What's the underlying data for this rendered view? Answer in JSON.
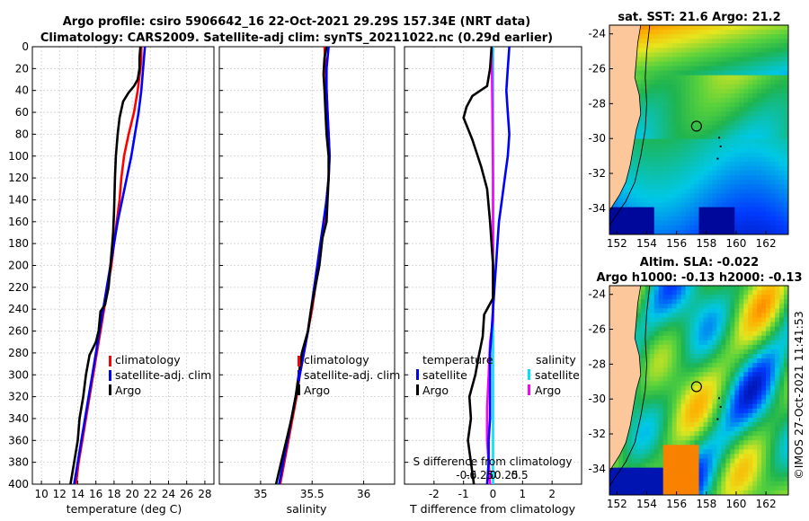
{
  "header": {
    "title_line1": "Argo profile: csiro 5906642_16 22-Oct-2021 29.29S 157.34E (NRT data)",
    "title_line2": "Climatology: CARS2009. Satellite-adj clim: synTS_20211022.nc (0.29d earlier)"
  },
  "colors": {
    "climatology": "#ff0000",
    "satellite": "#0000ff",
    "argo": "#000000",
    "sal_satellite": "#00e0ff",
    "sal_argo": "#ff00ff",
    "land": "#fcc89b"
  },
  "depth_axis": {
    "ticks": [
      0,
      20,
      40,
      60,
      80,
      100,
      120,
      140,
      160,
      180,
      200,
      220,
      240,
      260,
      280,
      300,
      320,
      340,
      360,
      380,
      400
    ],
    "ylim": [
      0,
      400
    ]
  },
  "chart_data": [
    {
      "type": "line",
      "name": "temperature",
      "xlabel": "temperature (deg C)",
      "xlim": [
        9,
        29
      ],
      "xticks": [
        10,
        12,
        14,
        16,
        18,
        20,
        22,
        24,
        26,
        28
      ],
      "ylim": [
        400,
        0
      ],
      "legend": [
        "climatology",
        "satellite-adj. clim",
        "Argo"
      ],
      "series": [
        {
          "name": "climatology",
          "color": "#ff0000",
          "points": [
            [
              21.0,
              0
            ],
            [
              21.0,
              10
            ],
            [
              20.9,
              20
            ],
            [
              20.6,
              40
            ],
            [
              20.2,
              60
            ],
            [
              19.6,
              80
            ],
            [
              19.1,
              100
            ],
            [
              18.8,
              120
            ],
            [
              18.6,
              140
            ],
            [
              18.3,
              160
            ],
            [
              18.0,
              180
            ],
            [
              17.7,
              200
            ],
            [
              17.3,
              220
            ],
            [
              16.9,
              240
            ],
            [
              16.5,
              260
            ],
            [
              16.1,
              280
            ],
            [
              15.7,
              300
            ],
            [
              15.3,
              320
            ],
            [
              14.9,
              340
            ],
            [
              14.5,
              360
            ],
            [
              14.1,
              380
            ],
            [
              13.8,
              400
            ]
          ]
        },
        {
          "name": "satellite-adj. clim",
          "color": "#0000ff",
          "points": [
            [
              21.4,
              0
            ],
            [
              21.3,
              10
            ],
            [
              21.2,
              20
            ],
            [
              21.0,
              40
            ],
            [
              20.7,
              60
            ],
            [
              20.3,
              80
            ],
            [
              19.9,
              100
            ],
            [
              19.4,
              120
            ],
            [
              18.9,
              140
            ],
            [
              18.4,
              160
            ],
            [
              18.0,
              180
            ],
            [
              17.6,
              200
            ],
            [
              17.2,
              220
            ],
            [
              16.8,
              240
            ],
            [
              16.4,
              260
            ],
            [
              16.0,
              280
            ],
            [
              15.6,
              300
            ],
            [
              15.2,
              320
            ],
            [
              14.8,
              340
            ],
            [
              14.4,
              360
            ],
            [
              14.0,
              380
            ],
            [
              13.6,
              400
            ]
          ]
        },
        {
          "name": "Argo",
          "color": "#000000",
          "points": [
            [
              20.9,
              0
            ],
            [
              20.8,
              10
            ],
            [
              20.8,
              20
            ],
            [
              20.6,
              30
            ],
            [
              20.2,
              36
            ],
            [
              19.6,
              42
            ],
            [
              19.0,
              50
            ],
            [
              18.6,
              65
            ],
            [
              18.4,
              80
            ],
            [
              18.2,
              100
            ],
            [
              18.1,
              120
            ],
            [
              18.0,
              150
            ],
            [
              17.9,
              170
            ],
            [
              17.6,
              200
            ],
            [
              17.4,
              220
            ],
            [
              17.0,
              236
            ],
            [
              16.5,
              242
            ],
            [
              16.3,
              260
            ],
            [
              16.0,
              270
            ],
            [
              15.3,
              282
            ],
            [
              14.9,
              300
            ],
            [
              14.6,
              320
            ],
            [
              14.2,
              340
            ],
            [
              14.0,
              360
            ],
            [
              13.6,
              380
            ],
            [
              13.2,
              400
            ]
          ]
        }
      ]
    },
    {
      "type": "line",
      "name": "salinity",
      "xlabel": "salinity",
      "xlim": [
        34.6,
        36.3
      ],
      "xticks": [
        35,
        35.5,
        36
      ],
      "ylim": [
        400,
        0
      ],
      "legend": [
        "climatology",
        "satellite-adj. clim",
        "Argo"
      ],
      "series": [
        {
          "name": "climatology",
          "color": "#ff0000",
          "points": [
            [
              35.62,
              0
            ],
            [
              35.63,
              20
            ],
            [
              35.64,
              40
            ],
            [
              35.65,
              60
            ],
            [
              35.66,
              80
            ],
            [
              35.67,
              100
            ],
            [
              35.66,
              120
            ],
            [
              35.64,
              140
            ],
            [
              35.62,
              160
            ],
            [
              35.59,
              180
            ],
            [
              35.56,
              200
            ],
            [
              35.53,
              220
            ],
            [
              35.5,
              240
            ],
            [
              35.46,
              260
            ],
            [
              35.42,
              280
            ],
            [
              35.38,
              300
            ],
            [
              35.35,
              320
            ],
            [
              35.31,
              340
            ],
            [
              35.27,
              360
            ],
            [
              35.23,
              380
            ],
            [
              35.19,
              400
            ]
          ]
        },
        {
          "name": "satellite-adj. clim",
          "color": "#0000ff",
          "points": [
            [
              35.66,
              0
            ],
            [
              35.64,
              20
            ],
            [
              35.64,
              40
            ],
            [
              35.65,
              60
            ],
            [
              35.66,
              80
            ],
            [
              35.67,
              100
            ],
            [
              35.66,
              120
            ],
            [
              35.64,
              140
            ],
            [
              35.61,
              160
            ],
            [
              35.58,
              180
            ],
            [
              35.55,
              200
            ],
            [
              35.52,
              220
            ],
            [
              35.49,
              240
            ],
            [
              35.46,
              260
            ],
            [
              35.42,
              280
            ],
            [
              35.38,
              300
            ],
            [
              35.34,
              320
            ],
            [
              35.3,
              340
            ],
            [
              35.26,
              360
            ],
            [
              35.22,
              380
            ],
            [
              35.18,
              400
            ]
          ]
        },
        {
          "name": "Argo",
          "color": "#000000",
          "points": [
            [
              35.64,
              0
            ],
            [
              35.62,
              10
            ],
            [
              35.61,
              25
            ],
            [
              35.62,
              40
            ],
            [
              35.63,
              60
            ],
            [
              35.64,
              80
            ],
            [
              35.66,
              100
            ],
            [
              35.66,
              120
            ],
            [
              35.65,
              140
            ],
            [
              35.64,
              160
            ],
            [
              35.6,
              175
            ],
            [
              35.57,
              200
            ],
            [
              35.53,
              220
            ],
            [
              35.49,
              240
            ],
            [
              35.46,
              260
            ],
            [
              35.4,
              280
            ],
            [
              35.37,
              300
            ],
            [
              35.34,
              320
            ],
            [
              35.3,
              340
            ],
            [
              35.25,
              360
            ],
            [
              35.2,
              380
            ],
            [
              35.15,
              400
            ]
          ]
        }
      ]
    },
    {
      "type": "line",
      "name": "difference",
      "xlabel": "T difference from climatology",
      "xlim": [
        -3,
        3
      ],
      "xticks": [
        -2,
        -1,
        0,
        1,
        2
      ],
      "top_xlabel": "S difference from climatology",
      "top_xticks": [
        "-0.5",
        "-0.25",
        "0",
        "0.25",
        "0.5"
      ],
      "ylim": [
        400,
        0
      ],
      "legend_temperature_title": "temperature",
      "legend_salinity_title": "salinity",
      "legend": [
        "satellite",
        "Argo",
        "satellite",
        "Argo"
      ],
      "series": [
        {
          "name": "T satellite",
          "color": "#0000ff",
          "points": [
            [
              0.55,
              0
            ],
            [
              0.5,
              20
            ],
            [
              0.45,
              40
            ],
            [
              0.5,
              60
            ],
            [
              0.55,
              80
            ],
            [
              0.5,
              100
            ],
            [
              0.4,
              120
            ],
            [
              0.3,
              140
            ],
            [
              0.2,
              160
            ],
            [
              0.15,
              180
            ],
            [
              0.1,
              200
            ],
            [
              0.05,
              220
            ],
            [
              0.0,
              240
            ],
            [
              -0.05,
              260
            ],
            [
              -0.1,
              280
            ],
            [
              -0.1,
              300
            ],
            [
              -0.1,
              320
            ],
            [
              -0.1,
              340
            ],
            [
              -0.15,
              360
            ],
            [
              -0.15,
              380
            ],
            [
              -0.2,
              400
            ]
          ]
        },
        {
          "name": "T Argo",
          "color": "#000000",
          "points": [
            [
              -0.05,
              0
            ],
            [
              -0.1,
              20
            ],
            [
              -0.2,
              36
            ],
            [
              -0.7,
              45
            ],
            [
              -0.9,
              55
            ],
            [
              -1.0,
              65
            ],
            [
              -0.7,
              85
            ],
            [
              -0.4,
              110
            ],
            [
              -0.2,
              130
            ],
            [
              -0.1,
              160
            ],
            [
              0.0,
              200
            ],
            [
              0.0,
              230
            ],
            [
              -0.3,
              245
            ],
            [
              -0.35,
              265
            ],
            [
              -0.5,
              285
            ],
            [
              -0.6,
              300
            ],
            [
              -0.8,
              320
            ],
            [
              -0.75,
              340
            ],
            [
              -0.85,
              360
            ],
            [
              -0.75,
              380
            ],
            [
              -0.65,
              400
            ]
          ]
        },
        {
          "name": "S satellite",
          "color": "#00e0ff",
          "points": [
            [
              0.0,
              0
            ],
            [
              0.0,
              100
            ],
            [
              0.0,
              200
            ],
            [
              0.0,
              300
            ],
            [
              0.0,
              400
            ]
          ]
        },
        {
          "name": "S Argo",
          "color": "#ff00ff",
          "points": [
            [
              -0.05,
              0
            ],
            [
              -0.02,
              60
            ],
            [
              0.0,
              120
            ],
            [
              0.0,
              200
            ],
            [
              0.0,
              250
            ],
            [
              -0.1,
              270
            ],
            [
              -0.15,
              300
            ],
            [
              -0.2,
              330
            ],
            [
              -0.2,
              360
            ],
            [
              -0.15,
              380
            ],
            [
              -0.1,
              400
            ]
          ]
        }
      ]
    },
    {
      "type": "heatmap",
      "name": "sst_map",
      "title": "sat. SST: 21.6  Argo: 21.2",
      "xticks": [
        152,
        154,
        156,
        158,
        160,
        162
      ],
      "yticks": [
        -24,
        -26,
        -28,
        -30,
        -32,
        -34
      ],
      "xlim": [
        151.5,
        163.5
      ],
      "ylim": [
        -35.5,
        -23.5
      ],
      "argo_position": [
        157.34,
        -29.29
      ]
    },
    {
      "type": "heatmap",
      "name": "sla_map",
      "title_line1": "Altim. SLA: -0.022",
      "title_line2": "Argo h1000: -0.13  h2000: -0.13",
      "xticks": [
        152,
        154,
        156,
        158,
        160,
        162
      ],
      "yticks": [
        -24,
        -26,
        -28,
        -30,
        -32,
        -34
      ],
      "xlim": [
        151.5,
        163.5
      ],
      "ylim": [
        -35.5,
        -23.5
      ],
      "argo_position": [
        157.34,
        -29.29
      ]
    }
  ],
  "footer": {
    "timestamp": "©IMOS 27-Oct-2021 11:41:53"
  }
}
